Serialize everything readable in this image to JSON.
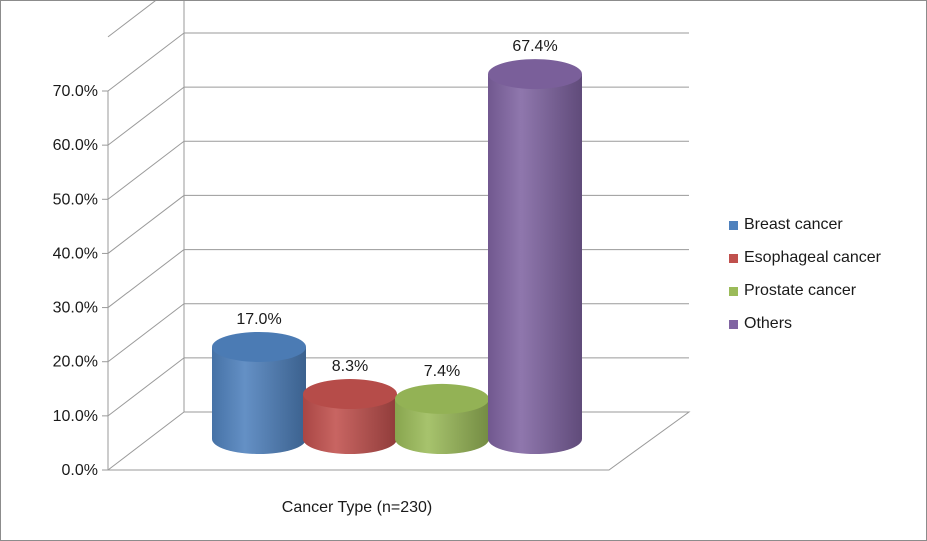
{
  "chart_data": {
    "type": "bar",
    "style": "3d-cylinder",
    "xlabel": "Cancer Type (n=230)",
    "ylabel": "",
    "ylim": [
      0,
      70
    ],
    "yticks": [
      "0.0%",
      "10.0%",
      "20.0%",
      "30.0%",
      "40.0%",
      "50.0%",
      "60.0%",
      "70.0%"
    ],
    "grid": true,
    "legend_position": "right",
    "series": [
      {
        "name": "Breast cancer",
        "value": 17.0,
        "label": "17.0%",
        "color": "#4f81bd"
      },
      {
        "name": "Esophageal cancer",
        "value": 8.3,
        "label": "8.3%",
        "color": "#c0504d"
      },
      {
        "name": "Prostate cancer",
        "value": 7.4,
        "label": "7.4%",
        "color": "#9bbb59"
      },
      {
        "name": "Others",
        "value": 67.4,
        "label": "67.4%",
        "color": "#8064a2"
      }
    ]
  }
}
